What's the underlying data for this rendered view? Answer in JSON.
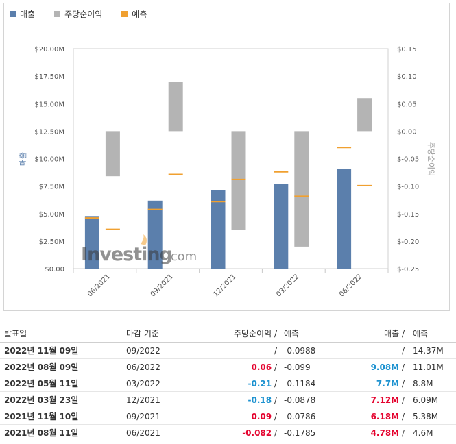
{
  "legend": [
    {
      "label": "매출",
      "color": "#5b7fac",
      "icon": "square"
    },
    {
      "label": "주당순이익",
      "color": "#b4b4b4",
      "icon": "square"
    },
    {
      "label": "예측",
      "color": "#f0a030",
      "icon": "square"
    }
  ],
  "chart_data": {
    "type": "bar",
    "categories": [
      "06/2021",
      "09/2021",
      "12/2021",
      "03/2022",
      "06/2022"
    ],
    "series": [
      {
        "name": "매출",
        "axis": "left",
        "values": [
          4.78,
          6.18,
          7.12,
          7.7,
          9.08
        ],
        "color": "#5b7fac"
      },
      {
        "name": "주당순이익",
        "axis": "right",
        "values": [
          -0.082,
          0.09,
          -0.18,
          -0.21,
          0.06
        ],
        "color": "#b4b4b4"
      }
    ],
    "forecasts": [
      {
        "name": "예측",
        "axis": "left",
        "values": [
          4.6,
          5.38,
          6.09,
          8.8,
          11.01
        ],
        "color": "#f0a030"
      },
      {
        "name": "예측",
        "axis": "right",
        "values": [
          -0.1785,
          -0.0786,
          -0.0878,
          -0.1184,
          -0.099
        ],
        "color": "#f0a030"
      }
    ],
    "ylabel_left": "매출",
    "ylabel_right": "주당순이익",
    "ylim_left": [
      0,
      20
    ],
    "ylim_right": [
      -0.25,
      0.15
    ],
    "yticks_left": [
      "$0.00",
      "$2.50M",
      "$5.00M",
      "$7.50M",
      "$10.00M",
      "$12.50M",
      "$15.00M",
      "$17.50M",
      "$20.00M"
    ],
    "yticks_right": [
      "$-0.25",
      "$-0.20",
      "$-0.15",
      "$-0.10",
      "$-0.05",
      "$0.00",
      "$0.05",
      "$0.10",
      "$0.15"
    ],
    "watermark": "Investing.com",
    "grid": false,
    "legend_position": "top-left"
  },
  "table": {
    "headers": [
      "발표일",
      "마감 기준",
      "주당순이익",
      "/",
      "예측",
      "매출",
      "/",
      "예측"
    ],
    "rows": [
      {
        "date": "2022년 11월 09일",
        "period_end": "09/2022",
        "eps": "--",
        "eps_sign": "nil",
        "eps_forecast": "-0.0988",
        "revenue": "--",
        "revenue_sign": "nil",
        "revenue_forecast": "14.37M"
      },
      {
        "date": "2022년 08월 09일",
        "period_end": "06/2022",
        "eps": "0.06",
        "eps_sign": "pos",
        "eps_forecast": "-0.099",
        "revenue": "9.08M",
        "revenue_sign": "neg",
        "revenue_forecast": "11.01M"
      },
      {
        "date": "2022년 05월 11일",
        "period_end": "03/2022",
        "eps": "-0.21",
        "eps_sign": "neg",
        "eps_forecast": "-0.1184",
        "revenue": "7.7M",
        "revenue_sign": "neg",
        "revenue_forecast": "8.8M"
      },
      {
        "date": "2022년 03월 23일",
        "period_end": "12/2021",
        "eps": "-0.18",
        "eps_sign": "neg",
        "eps_forecast": "-0.0878",
        "revenue": "7.12M",
        "revenue_sign": "pos",
        "revenue_forecast": "6.09M"
      },
      {
        "date": "2021년 11월 10일",
        "period_end": "09/2021",
        "eps": "0.09",
        "eps_sign": "pos",
        "eps_forecast": "-0.0786",
        "revenue": "6.18M",
        "revenue_sign": "pos",
        "revenue_forecast": "5.38M"
      },
      {
        "date": "2021년 08월 11일",
        "period_end": "06/2021",
        "eps": "-0.082",
        "eps_sign": "pos",
        "eps_forecast": "-0.1785",
        "revenue": "4.78M",
        "revenue_sign": "pos",
        "revenue_forecast": "4.6M"
      }
    ]
  }
}
